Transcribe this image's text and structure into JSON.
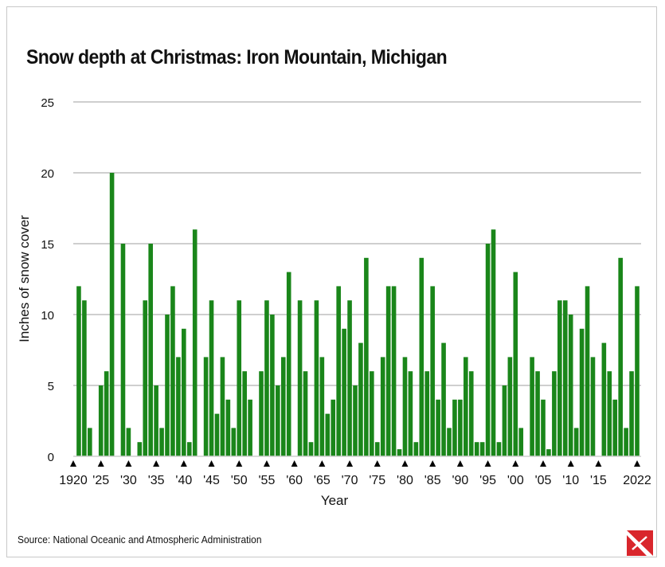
{
  "chart_data": {
    "type": "bar",
    "title": "Snow depth at Christmas: Iron Mountain, Michigan",
    "xlabel": "Year",
    "ylabel": "Inches of snow cover",
    "ylim": [
      0,
      25
    ],
    "yticks": [
      0,
      5,
      10,
      15,
      20,
      25
    ],
    "grid": true,
    "bar_color": "#1a861a",
    "xticks": [
      {
        "year": 1920,
        "label": "1920"
      },
      {
        "year": 1925,
        "label": "'25"
      },
      {
        "year": 1930,
        "label": "'30"
      },
      {
        "year": 1935,
        "label": "'35"
      },
      {
        "year": 1940,
        "label": "'40"
      },
      {
        "year": 1945,
        "label": "'45"
      },
      {
        "year": 1950,
        "label": "'50"
      },
      {
        "year": 1955,
        "label": "'55"
      },
      {
        "year": 1960,
        "label": "'60"
      },
      {
        "year": 1965,
        "label": "'65"
      },
      {
        "year": 1970,
        "label": "'70"
      },
      {
        "year": 1975,
        "label": "'75"
      },
      {
        "year": 1980,
        "label": "'80"
      },
      {
        "year": 1985,
        "label": "'85"
      },
      {
        "year": 1990,
        "label": "'90"
      },
      {
        "year": 1995,
        "label": "'95"
      },
      {
        "year": 2000,
        "label": "'00"
      },
      {
        "year": 2005,
        "label": "'05"
      },
      {
        "year": 2010,
        "label": "'10"
      },
      {
        "year": 2015,
        "label": "'15"
      },
      {
        "year": 2022,
        "label": "2022"
      }
    ],
    "x_start": 1920,
    "values": [
      0,
      12,
      11,
      2,
      0,
      5,
      6,
      20,
      0,
      15,
      2,
      0,
      1,
      11,
      15,
      5,
      2,
      10,
      12,
      7,
      9,
      1,
      16,
      0,
      7,
      11,
      3,
      7,
      4,
      2,
      11,
      6,
      4,
      0,
      6,
      11,
      10,
      5,
      7,
      13,
      0,
      11,
      6,
      1,
      11,
      7,
      3,
      4,
      12,
      9,
      11,
      5,
      8,
      14,
      6,
      1,
      7,
      12,
      12,
      0.5,
      7,
      6,
      1,
      14,
      6,
      12,
      4,
      8,
      2,
      4,
      4,
      7,
      6,
      1,
      1,
      15,
      16,
      1,
      5,
      7,
      13,
      2,
      0,
      7,
      6,
      4,
      0.5,
      6,
      11,
      11,
      10,
      2,
      9,
      12,
      7,
      0,
      8,
      6,
      4,
      14,
      2,
      6,
      12
    ]
  },
  "source": "Source: National Oceanic and Atmospheric Administration",
  "logo": {
    "name": "publisher-logo",
    "color": "#d9262c"
  }
}
